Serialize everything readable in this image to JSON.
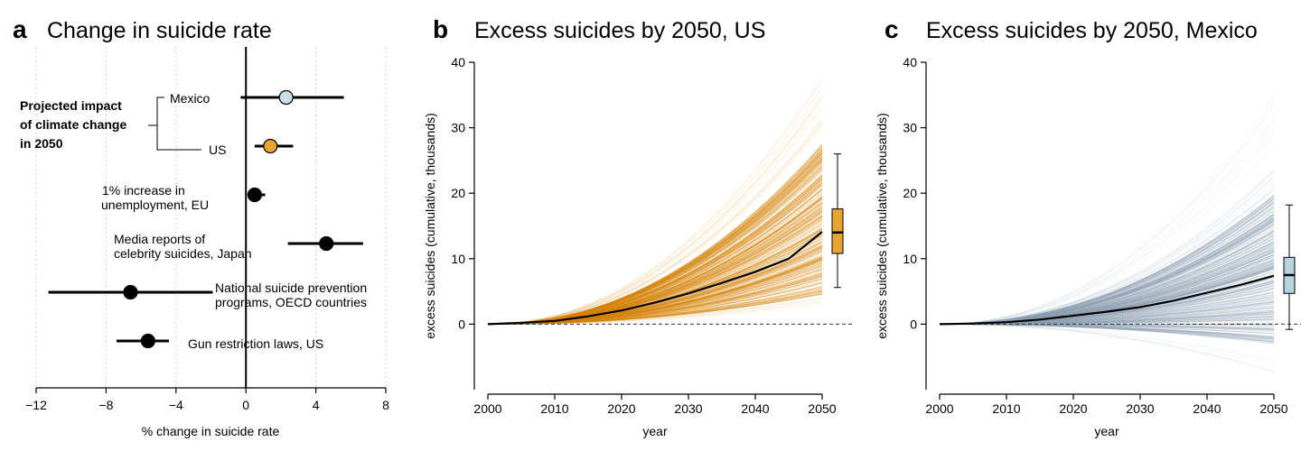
{
  "chart_data": [
    {
      "panel": "a",
      "type": "forest",
      "title": "Change in suicide rate",
      "xlabel": "% change in suicide rate",
      "xlim": [
        -12,
        8
      ],
      "xticks": [
        -12,
        -8,
        -4,
        0,
        4,
        8
      ],
      "xtick_labels": [
        "−12",
        "−8",
        "−4",
        "0",
        "4",
        "8"
      ],
      "group_label": [
        "Projected impact",
        "of climate change",
        "in 2050"
      ],
      "rows": [
        {
          "label": [
            "Mexico"
          ],
          "estimate": 2.3,
          "ci": [
            -0.3,
            5.6
          ],
          "color": "#c9dde5"
        },
        {
          "label": [
            "US"
          ],
          "estimate": 1.4,
          "ci": [
            0.5,
            2.7
          ],
          "color": "#e8a430"
        },
        {
          "label": [
            "1% increase in",
            "unemployment, EU"
          ],
          "estimate": 0.5,
          "ci": [
            0.3,
            1.1
          ],
          "color": "#000000"
        },
        {
          "label": [
            "Media reports of",
            "celebrity suicides, Japan"
          ],
          "estimate": 4.6,
          "ci": [
            2.4,
            6.7
          ],
          "color": "#000000"
        },
        {
          "label": [
            "National suicide prevention",
            "programs, OECD countries"
          ],
          "estimate": -6.6,
          "ci": [
            -11.3,
            -1.9
          ],
          "color": "#000000"
        },
        {
          "label": [
            "Gun restriction laws, US"
          ],
          "estimate": -5.6,
          "ci": [
            -7.4,
            -4.4
          ],
          "color": "#000000"
        }
      ]
    },
    {
      "panel": "b",
      "type": "line",
      "title": "Excess suicides by 2050, US",
      "xlabel": "year",
      "ylabel": "excess suicides (cumulative, thousands)",
      "xlim": [
        2000,
        2050
      ],
      "ylim": [
        -10,
        40
      ],
      "xticks": [
        2000,
        2010,
        2020,
        2030,
        2040,
        2050
      ],
      "yticks": [
        0,
        10,
        20,
        30,
        40
      ],
      "ensemble_color": "#d4860a",
      "ensemble_end_range": [
        2,
        38
      ],
      "ensemble_core_end_range": [
        4.5,
        28
      ],
      "median_curve": {
        "x": [
          2000,
          2005,
          2010,
          2015,
          2020,
          2025,
          2030,
          2035,
          2040,
          2045,
          2050
        ],
        "y": [
          0,
          0.2,
          0.5,
          1.2,
          2.1,
          3.3,
          4.7,
          6.3,
          8.0,
          10.0,
          14.1
        ]
      },
      "boxplot_2050": {
        "min": 5.6,
        "q1": 10.8,
        "median": 14.0,
        "q3": 17.6,
        "max": 26.0,
        "color": "#e8a430"
      }
    },
    {
      "panel": "c",
      "type": "line",
      "title": "Excess suicides by 2050, Mexico",
      "xlabel": "year",
      "ylabel": "excess suicides (cumulative, thousands)",
      "xlim": [
        2000,
        2050
      ],
      "ylim": [
        -10,
        40
      ],
      "xticks": [
        2000,
        2010,
        2020,
        2030,
        2040,
        2050
      ],
      "yticks": [
        0,
        10,
        20,
        30,
        40
      ],
      "ensemble_color": "#8ba0b0",
      "ensemble_end_range": [
        -8,
        35
      ],
      "ensemble_core_end_range": [
        -3,
        20
      ],
      "median_curve": {
        "x": [
          2000,
          2005,
          2010,
          2015,
          2020,
          2025,
          2030,
          2035,
          2040,
          2045,
          2050
        ],
        "y": [
          0,
          0.1,
          0.3,
          0.7,
          1.3,
          1.9,
          2.6,
          3.6,
          4.8,
          6.0,
          7.4
        ]
      },
      "boxplot_2050": {
        "min": -0.8,
        "q1": 4.7,
        "median": 7.5,
        "q3": 10.2,
        "max": 18.2,
        "color": "#b6d4e0"
      }
    }
  ]
}
